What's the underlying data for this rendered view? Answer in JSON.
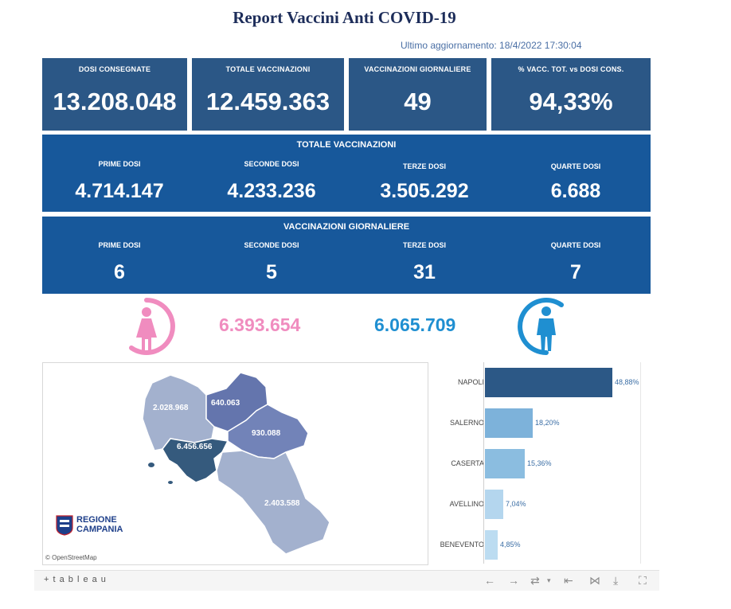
{
  "title": "Report Vaccini Anti COVID-19",
  "updated": "Ultimo aggiornamento: 18/4/2022 17:30:04",
  "kpis": [
    {
      "label": "DOSI  CONSEGNATE",
      "value": "13.208.048"
    },
    {
      "label": "TOTALE VACCINAZIONI",
      "value": "12.459.363"
    },
    {
      "label": "VACCINAZIONI GIORNALIERE",
      "value": "49"
    },
    {
      "label": "% VACC. TOT. vs DOSI CONS.",
      "value": "94,33%"
    }
  ],
  "totale": {
    "title": "TOTALE VACCINAZIONI",
    "items": [
      {
        "label": "PRIME DOSI",
        "value": "4.714.147"
      },
      {
        "label": "SECONDE DOSI",
        "value": "4.233.236"
      },
      {
        "label": "TERZE DOSI",
        "value": "3.505.292"
      },
      {
        "label": "QUARTE DOSI",
        "value": "6.688"
      }
    ]
  },
  "giornaliere": {
    "title": "VACCINAZIONI GIORNALIERE",
    "items": [
      {
        "label": "PRIME DOSI",
        "value": "6"
      },
      {
        "label": "SECONDE DOSI",
        "value": "5"
      },
      {
        "label": "TERZE DOSI",
        "value": "31"
      },
      {
        "label": "QUARTE DOSI",
        "value": "7"
      }
    ]
  },
  "gender": {
    "female_value": "6.393.654",
    "male_value": "6.065.709",
    "female_color": "#f08cbf",
    "male_color": "#1f8fd1"
  },
  "map": {
    "caserta_value": "2.028.968",
    "benevento_value": "640.063",
    "avellino_value": "930.088",
    "napoli_value": "6.456.656",
    "salerno_value": "2.403.588",
    "logo_line1": "REGIONE",
    "logo_line2": "CAMPANIA",
    "attribution": "© OpenStreetMap"
  },
  "chart_data": {
    "type": "bar",
    "orientation": "horizontal",
    "categories": [
      "NAPOLI",
      "SALERNO",
      "CASERTA",
      "AVELLINO",
      "BENEVENTO"
    ],
    "values": [
      48.88,
      18.2,
      15.36,
      7.04,
      4.85
    ],
    "labels": [
      "48,88%",
      "18,20%",
      "15,36%",
      "7,04%",
      "4,85%"
    ],
    "colors": [
      "#2c5886",
      "#7db2da",
      "#8bbde0",
      "#b4d6ee",
      "#bcdcf1"
    ],
    "xlim": [
      0,
      60
    ]
  },
  "toolbar": {
    "brand": "+ t a b l e a u"
  }
}
